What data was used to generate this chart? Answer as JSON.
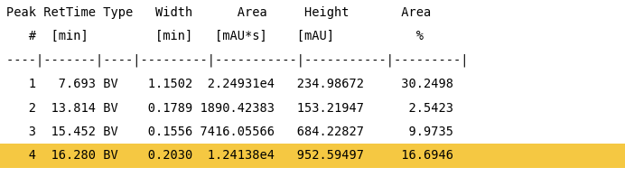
{
  "lines": [
    "Peak RetTime Type   Width      Area     Height       Area",
    "   #  [min]         [min]   [mAU*s]    [mAU]           %",
    "----|-------|----|---------|-----------|-----------|---------| ",
    "   1   7.693 BV    1.1502  2.24931e4   234.98672     30.2498",
    "   2  13.814 BV    0.1789 1890.42383   153.21947      2.5423",
    "   3  15.452 BV    0.1556 7416.05566   684.22827      9.9735",
    "   4  16.280 BV    0.2030  1.24138e4   952.59497     16.6946"
  ],
  "highlight_line_idx": 6,
  "highlight_color": "#F5C842",
  "bg_color": "#ffffff",
  "font_color": "#000000",
  "font_size": 9.8
}
